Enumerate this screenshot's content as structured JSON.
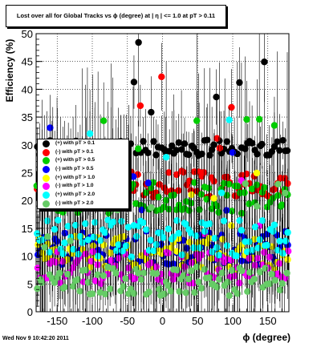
{
  "title": "Lost over all for Global Tracks vs ϕ (degree) at | η | <= 1.0 at pT > 0.11",
  "timestamp": "Wed Nov  9 10:42:20 2011",
  "chart_data": {
    "type": "scatter",
    "xlabel": "ϕ (degree)",
    "ylabel": "Efficiency (%)",
    "xlim": [
      -180,
      180
    ],
    "ylim": [
      0,
      50
    ],
    "xticks": [
      -150,
      -100,
      -50,
      0,
      50,
      100,
      150
    ],
    "yticks": [
      0,
      5,
      10,
      15,
      20,
      25,
      30,
      35,
      40,
      45,
      50
    ],
    "grid": true,
    "legend_position": "left-middle",
    "series": [
      {
        "name": "(+) with pT > 0.1",
        "color": "#000000",
        "level": 29.5
      },
      {
        "name": "(-) with pT > 0.1",
        "color": "#ff0000",
        "level": 23.0
      },
      {
        "name": "(+) with pT > 0.5",
        "color": "#00cc00",
        "level": 20.5
      },
      {
        "name": "(-) with pT > 0.5",
        "color": "#0000ff",
        "level": 11.5
      },
      {
        "name": "(+) with pT > 1.0",
        "color": "#ffff00",
        "level": 10.5
      },
      {
        "name": "(-) with pT > 1.0",
        "color": "#ff00ff",
        "level": 8.0
      },
      {
        "name": "(+) with pT > 2.0",
        "color": "#00ffff",
        "level": 13.0
      },
      {
        "name": "(-) with pT > 2.0",
        "color": "#66cc66",
        "level": 5.5
      }
    ]
  }
}
